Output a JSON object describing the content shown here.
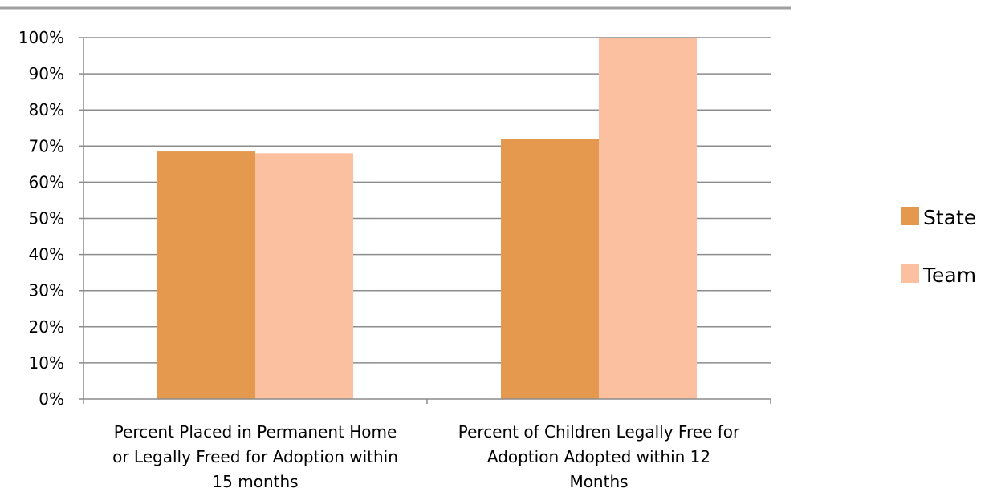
{
  "chart_data": {
    "type": "bar",
    "categories": [
      [
        "Percent Placed in Permanent Home",
        "or Legally Freed for Adoption within",
        "15 months"
      ],
      [
        "Percent of Children Legally Free for",
        "Adoption Adopted within 12",
        "Months"
      ]
    ],
    "series": [
      {
        "name": "State",
        "color": "#E5994E",
        "values": [
          68.5,
          72
        ]
      },
      {
        "name": "Team",
        "color": "#FAC0A0",
        "values": [
          68,
          100
        ]
      }
    ],
    "ylim": [
      0,
      100
    ],
    "yticks": [
      0,
      10,
      20,
      30,
      40,
      50,
      60,
      70,
      80,
      90,
      100
    ],
    "ytick_labels": [
      "0%",
      "10%",
      "20%",
      "30%",
      "40%",
      "50%",
      "60%",
      "70%",
      "80%",
      "90%",
      "100%"
    ],
    "grid": true,
    "legend_position": "right",
    "colors": {
      "grid": "#8C8C8C",
      "axis": "#8C8C8C",
      "top_rule": "#A0A0A0"
    }
  }
}
